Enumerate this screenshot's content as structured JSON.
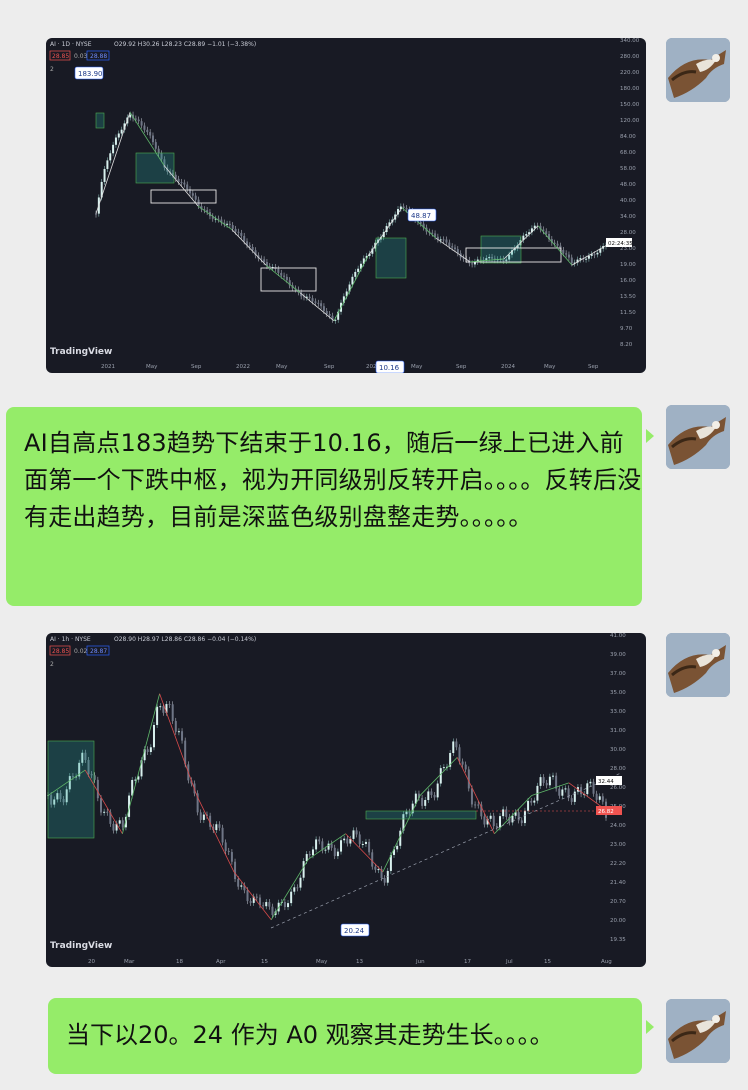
{
  "messages": [
    {
      "type": "image",
      "chart_index": 0
    },
    {
      "type": "text",
      "text": "AI自高点183趋势下结束于10.16，随后一绿上已进入前面第一个下跌中枢，视为开同级别反转开启。。。。反转后没有走出趋势，目前是深蓝色级别盘整走势。。。。。"
    },
    {
      "type": "image",
      "chart_index": 1
    },
    {
      "type": "text",
      "text": "当下以20。24 作为 A0 观察其走势生长。。。。"
    }
  ],
  "avatar": {
    "icon": "hawk-avatar-icon"
  },
  "colors": {
    "bubble": "#95ec69",
    "chart_bg": "#181a24",
    "up": "#26a69a",
    "down": "#ef5350"
  },
  "chart_data": [
    {
      "type": "line",
      "header": "AI · 1D · NYSE",
      "ohlc": "O29.92 H30.26 L28.23 C28.89 −1.01 (−3.38%)",
      "bid": "28.85",
      "spread": "0.03",
      "ask": "28.88",
      "indicator_count": "2",
      "brand": "TradingView",
      "x_ticks": [
        "2021",
        "May",
        "Sep",
        "2022",
        "May",
        "Sep",
        "2023",
        "May",
        "Sep",
        "2024",
        "May",
        "Sep"
      ],
      "y_ticks": [
        "340.00",
        "280.00",
        "220.00",
        "180.00",
        "150.00",
        "120.00",
        "84.00",
        "68.00",
        "58.00",
        "48.00",
        "40.00",
        "34.00",
        "28.00",
        "23.00",
        "19.00",
        "16.00",
        "13.50",
        "11.50",
        "9.70",
        "8.20"
      ],
      "y_scale": "log",
      "annotations": [
        "183.90",
        "48.87",
        "10.16"
      ],
      "last_price": "02:24:35",
      "series": [
        {
          "values": [
            45,
            184,
            88,
            50,
            36,
            22,
            15,
            10.16,
            25,
            48.87,
            32,
            23,
            24,
            38,
            22,
            28.89
          ]
        }
      ]
    },
    {
      "type": "line",
      "header": "AI · 1h · NYSE",
      "ohlc": "O28.90 H28.97 L28.86 C28.86 −0.04 (−0.14%)",
      "bid": "28.85",
      "spread": "0.02",
      "ask": "28.87",
      "indicator_count": "2",
      "brand": "TradingView",
      "x_ticks": [
        "20",
        "Mar",
        "18",
        "Apr",
        "15",
        "May",
        "13",
        "Jun",
        "17",
        "Jul",
        "15",
        "Aug"
      ],
      "y_ticks": [
        "41.00",
        "39.00",
        "37.00",
        "35.00",
        "33.00",
        "31.00",
        "30.00",
        "28.00",
        "26.00",
        "25.00",
        "24.00",
        "23.00",
        "22.20",
        "21.40",
        "20.70",
        "20.00",
        "19.35"
      ],
      "annotations": [
        "20.24"
      ],
      "last_price": "32.44",
      "level_price": "26.82",
      "series": [
        {
          "values": [
            30,
            32,
            27,
            38,
            30,
            24,
            20.24,
            25,
            27,
            24,
            30,
            33,
            27,
            30,
            31,
            28.86
          ]
        }
      ]
    }
  ]
}
